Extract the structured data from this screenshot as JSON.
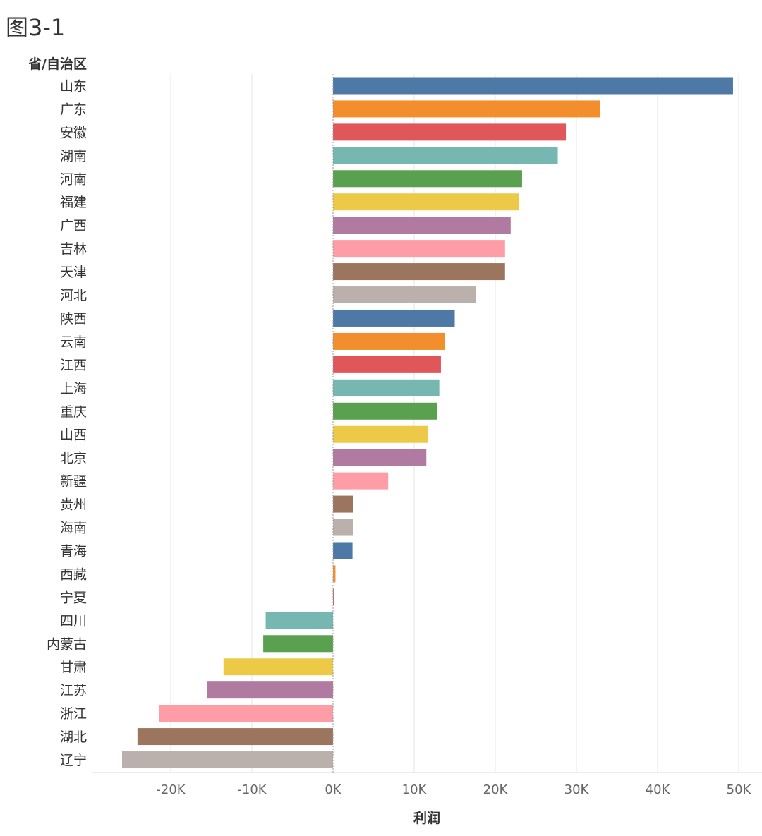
{
  "figure_label": "图3-1",
  "chart_data": {
    "type": "bar",
    "orientation": "horizontal",
    "row_header": "省/自治区",
    "xlabel": "利润",
    "xlim": [
      -30000,
      52000
    ],
    "xticks": [
      -20000,
      -10000,
      0,
      10000,
      20000,
      30000,
      40000,
      50000
    ],
    "xtick_labels": [
      "-20K",
      "-10K",
      "0K",
      "10K",
      "20K",
      "30K",
      "40K",
      "50K"
    ],
    "grid": "vertical",
    "categories": [
      "山东",
      "广东",
      "安徽",
      "湖南",
      "河南",
      "福建",
      "广西",
      "吉林",
      "天津",
      "河北",
      "陕西",
      "云南",
      "江西",
      "上海",
      "重庆",
      "山西",
      "北京",
      "新疆",
      "贵州",
      "海南",
      "青海",
      "西藏",
      "宁夏",
      "四川",
      "内蒙古",
      "甘肃",
      "江苏",
      "浙江",
      "湖北",
      "辽宁"
    ],
    "values": [
      49300,
      32900,
      28700,
      27700,
      23300,
      22900,
      21900,
      21200,
      21200,
      17600,
      15000,
      13800,
      13300,
      13100,
      12800,
      11700,
      11500,
      6800,
      2500,
      2500,
      2400,
      300,
      150,
      -8300,
      -8600,
      -13500,
      -15500,
      -21400,
      -24100,
      -26000
    ],
    "palette": [
      "#4e79a7",
      "#f28e2b",
      "#e15759",
      "#76b7b2",
      "#59a14f",
      "#edc948",
      "#b07aa1",
      "#ff9da7",
      "#9c755f",
      "#bab0ac"
    ]
  }
}
